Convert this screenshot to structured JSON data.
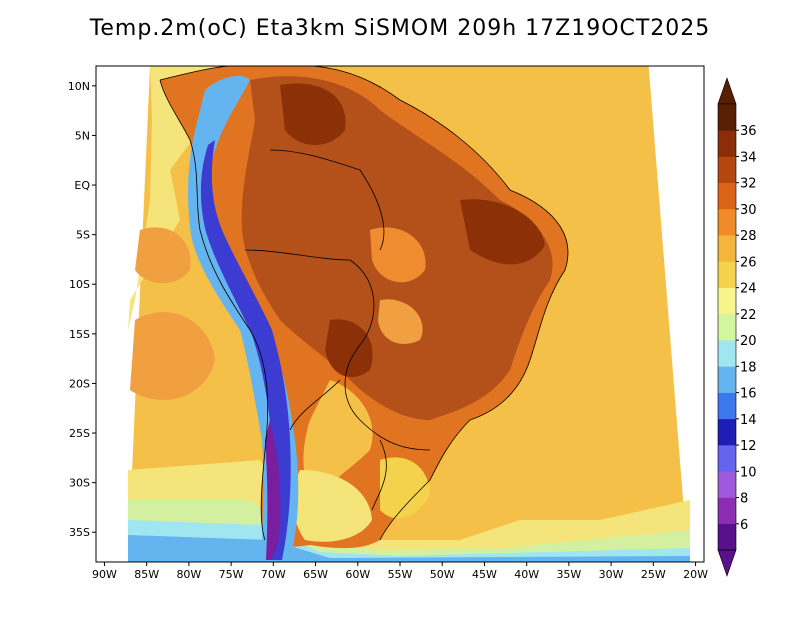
{
  "title": "Temp.2m(oC) Eta3km SiSMOM 209h 17Z19OCT2025",
  "map": {
    "lat_labels": [
      "10N",
      "5N",
      "EQ",
      "5S",
      "10S",
      "15S",
      "20S",
      "25S",
      "30S",
      "35S"
    ],
    "lat_values": [
      10,
      5,
      0,
      -5,
      -10,
      -15,
      -20,
      -25,
      -30,
      -35
    ],
    "lon_labels": [
      "90W",
      "85W",
      "80W",
      "75W",
      "70W",
      "65W",
      "60W",
      "55W",
      "50W",
      "45W",
      "40W",
      "35W",
      "30W",
      "25W",
      "20W"
    ],
    "lon_values": [
      -90,
      -85,
      -80,
      -75,
      -70,
      -65,
      -60,
      -55,
      -50,
      -45,
      -40,
      -35,
      -30,
      -25,
      -20
    ],
    "lat_range": [
      -38,
      12
    ],
    "lon_range": [
      -91,
      -19
    ],
    "field": "2m temperature",
    "units": "oC"
  },
  "colorbar": {
    "labels": [
      "6",
      "8",
      "10",
      "12",
      "14",
      "16",
      "18",
      "20",
      "22",
      "24",
      "26",
      "28",
      "30",
      "32",
      "34",
      "36"
    ],
    "levels": [
      6,
      8,
      10,
      12,
      14,
      16,
      18,
      20,
      22,
      24,
      26,
      28,
      30,
      32,
      34,
      36
    ],
    "colors": [
      "#5a0f8c",
      "#8c2db4",
      "#a058dc",
      "#6464f0",
      "#1e1eb4",
      "#3c78f0",
      "#64b4f0",
      "#a0e6f0",
      "#d2f5a0",
      "#f5f58c",
      "#f5d24b",
      "#f5b43c",
      "#f08c28",
      "#dc6414",
      "#b4460f",
      "#8c2d0a",
      "#5a1e05"
    ]
  }
}
